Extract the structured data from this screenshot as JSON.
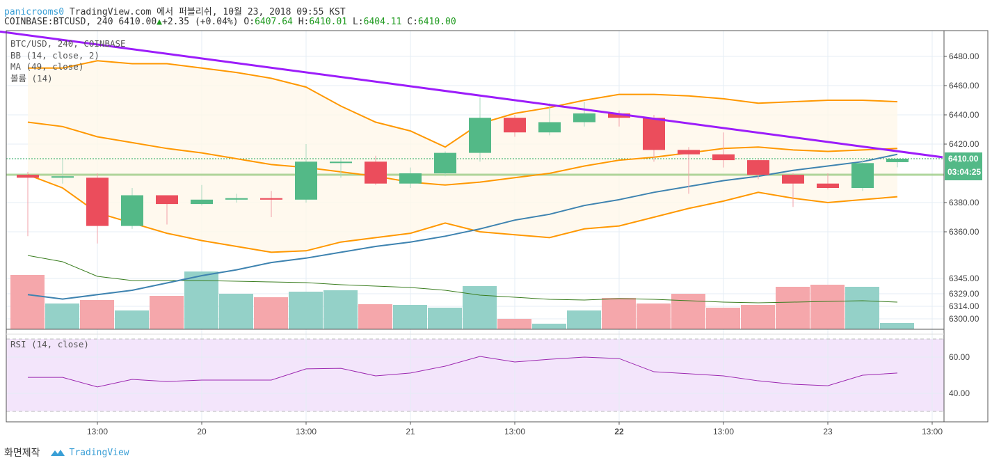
{
  "header": {
    "user": "panicrooms0",
    "published": "TradingView.com 에서 퍼블리쉬, 10월 23, 2018 09:55 KST",
    "symbol": "COINBASE:BTCUSD, 240",
    "last": "6410.00",
    "change": "+2.35 (+0.04%)",
    "o_label": "O:",
    "o": "6407.64",
    "h_label": "H:",
    "h": "6410.01",
    "l_label": "L:",
    "l": "6404.11",
    "c_label": "C:",
    "c": "6410.00"
  },
  "legend": [
    "BTC/USD, 240, COINBASE",
    "BB (14, close, 2)",
    "MA (49, close)",
    "볼륨 (14)"
  ],
  "rsi_label": "RSI (14, close)",
  "colors": {
    "up": "#53b987",
    "down": "#eb4d5c",
    "vol_up": "#94d1c8",
    "vol_down": "#f5a7ab",
    "bb": "#ff9800",
    "ma": "#3e83b0",
    "vol_ma": "#3a7d1f",
    "trend": "#9c1dfa",
    "rsi": "#9c27b0",
    "rsi_bg": "#f3e5fb"
  },
  "chart_data": {
    "type": "candlestick",
    "x_ticks": [
      {
        "i": 2,
        "label": "13:00"
      },
      {
        "i": 5,
        "label": "20"
      },
      {
        "i": 8,
        "label": "13:00"
      },
      {
        "i": 11,
        "label": "21"
      },
      {
        "i": 14,
        "label": "13:00"
      },
      {
        "i": 17,
        "label": "22",
        "bold": true
      },
      {
        "i": 20,
        "label": "13:00"
      },
      {
        "i": 23,
        "label": "23"
      },
      {
        "i": 26,
        "label": "13:00"
      }
    ],
    "y_ticks": [
      "6480.00",
      "6460.00",
      "6440.00",
      "6420.00",
      "6380.00",
      "6360.00",
      "6345.00",
      "6329.00",
      "6314.00",
      "6300.00"
    ],
    "price_ticks": [
      6480,
      6460,
      6440,
      6420,
      6380,
      6360
    ],
    "vol_ticks": [
      {
        "label": "6345.00",
        "v": 73
      },
      {
        "label": "6329.00",
        "v": 51
      },
      {
        "label": "6314.00",
        "v": 33
      },
      {
        "label": "6300.00",
        "v": 15
      }
    ],
    "last_price_label": "6410.00",
    "countdown": "03:04:25",
    "ohlc": [
      [
        6399,
        6401,
        6357,
        6397
      ],
      [
        6397,
        6410,
        6393,
        6398
      ],
      [
        6397,
        6400,
        6352,
        6364
      ],
      [
        6364,
        6390,
        6362,
        6385
      ],
      [
        6385,
        6385,
        6365,
        6379
      ],
      [
        6379,
        6392,
        6378,
        6382
      ],
      [
        6382,
        6386,
        6380,
        6383
      ],
      [
        6383,
        6388,
        6370,
        6382
      ],
      [
        6382,
        6420,
        6380,
        6408
      ],
      [
        6407,
        6410,
        6397,
        6408
      ],
      [
        6408,
        6412,
        6392,
        6393
      ],
      [
        6393,
        6404,
        6390,
        6400
      ],
      [
        6400,
        6415,
        6398,
        6414
      ],
      [
        6414,
        6452,
        6408,
        6438
      ],
      [
        6438,
        6440,
        6425,
        6428
      ],
      [
        6428,
        6448,
        6426,
        6435
      ],
      [
        6435,
        6449,
        6432,
        6441
      ],
      [
        6441,
        6443,
        6432,
        6438
      ],
      [
        6438,
        6440,
        6408,
        6416
      ],
      [
        6416,
        6418,
        6386,
        6413
      ],
      [
        6413,
        6428,
        6404,
        6409
      ],
      [
        6409,
        6410,
        6396,
        6399
      ],
      [
        6399,
        6400,
        6377,
        6393
      ],
      [
        6393,
        6400,
        6389,
        6390
      ],
      [
        6390,
        6410,
        6388,
        6407
      ],
      [
        6407.64,
        6410.01,
        6404.11,
        6410
      ]
    ],
    "volume": [
      78,
      37,
      42,
      27,
      48,
      83,
      51,
      46,
      54,
      56,
      36,
      35,
      31,
      62,
      15,
      8,
      27,
      45,
      37,
      51,
      31,
      35,
      61,
      64,
      61,
      9
    ],
    "volume_ma": [
      106,
      97,
      76,
      70,
      70,
      70,
      69,
      68,
      67,
      64,
      62,
      60,
      56,
      49,
      46,
      43,
      42,
      44,
      43,
      41,
      39,
      38,
      39,
      40,
      41,
      39
    ],
    "bb_upper": [
      6472,
      6472,
      6477,
      6475,
      6475,
      6472,
      6469,
      6465,
      6459,
      6446,
      6435,
      6429,
      6418,
      6434,
      6441,
      6445,
      6450,
      6454,
      6454,
      6453,
      6451,
      6448,
      6449,
      6450,
      6450,
      6449
    ],
    "bb_basis": [
      6435,
      6432,
      6425,
      6421,
      6417,
      6414,
      6410,
      6406,
      6404,
      6401,
      6398,
      6394,
      6392,
      6394,
      6397,
      6400,
      6405,
      6409,
      6411,
      6414,
      6417,
      6418,
      6416,
      6415,
      6416,
      6417
    ],
    "bb_lower": [
      6399,
      6390,
      6373,
      6366,
      6359,
      6354,
      6350,
      6346,
      6347,
      6353,
      6356,
      6359,
      6366,
      6360,
      6358,
      6356,
      6362,
      6364,
      6370,
      6376,
      6381,
      6387,
      6383,
      6380,
      6382,
      6384
    ],
    "ma49": [
      6317,
      6314,
      6317,
      6320,
      6325,
      6330,
      6334,
      6339,
      6342,
      6346,
      6350,
      6353,
      6357,
      6362,
      6368,
      6372,
      6378,
      6382,
      6387,
      6391,
      6395,
      6398,
      6402,
      6405,
      6408,
      6413
    ],
    "rsi": [
      48.8,
      48.8,
      43.5,
      47.7,
      46.5,
      47.3,
      47.3,
      47.3,
      53.5,
      53.8,
      49.6,
      51.2,
      55.0,
      60.4,
      57.3,
      58.8,
      60.0,
      59.2,
      51.9,
      50.8,
      49.6,
      46.9,
      45.0,
      44.2,
      50.0,
      51.2
    ],
    "rsi_ticks": [
      "60.00",
      "40.00"
    ],
    "rsi_bands": [
      70,
      30
    ],
    "trendline": [
      {
        "i": -0.8,
        "p": 6497
      },
      {
        "i": 26.3,
        "p": 6411
      }
    ]
  },
  "footer": {
    "made": "화면제작",
    "brand": "TradingView"
  }
}
